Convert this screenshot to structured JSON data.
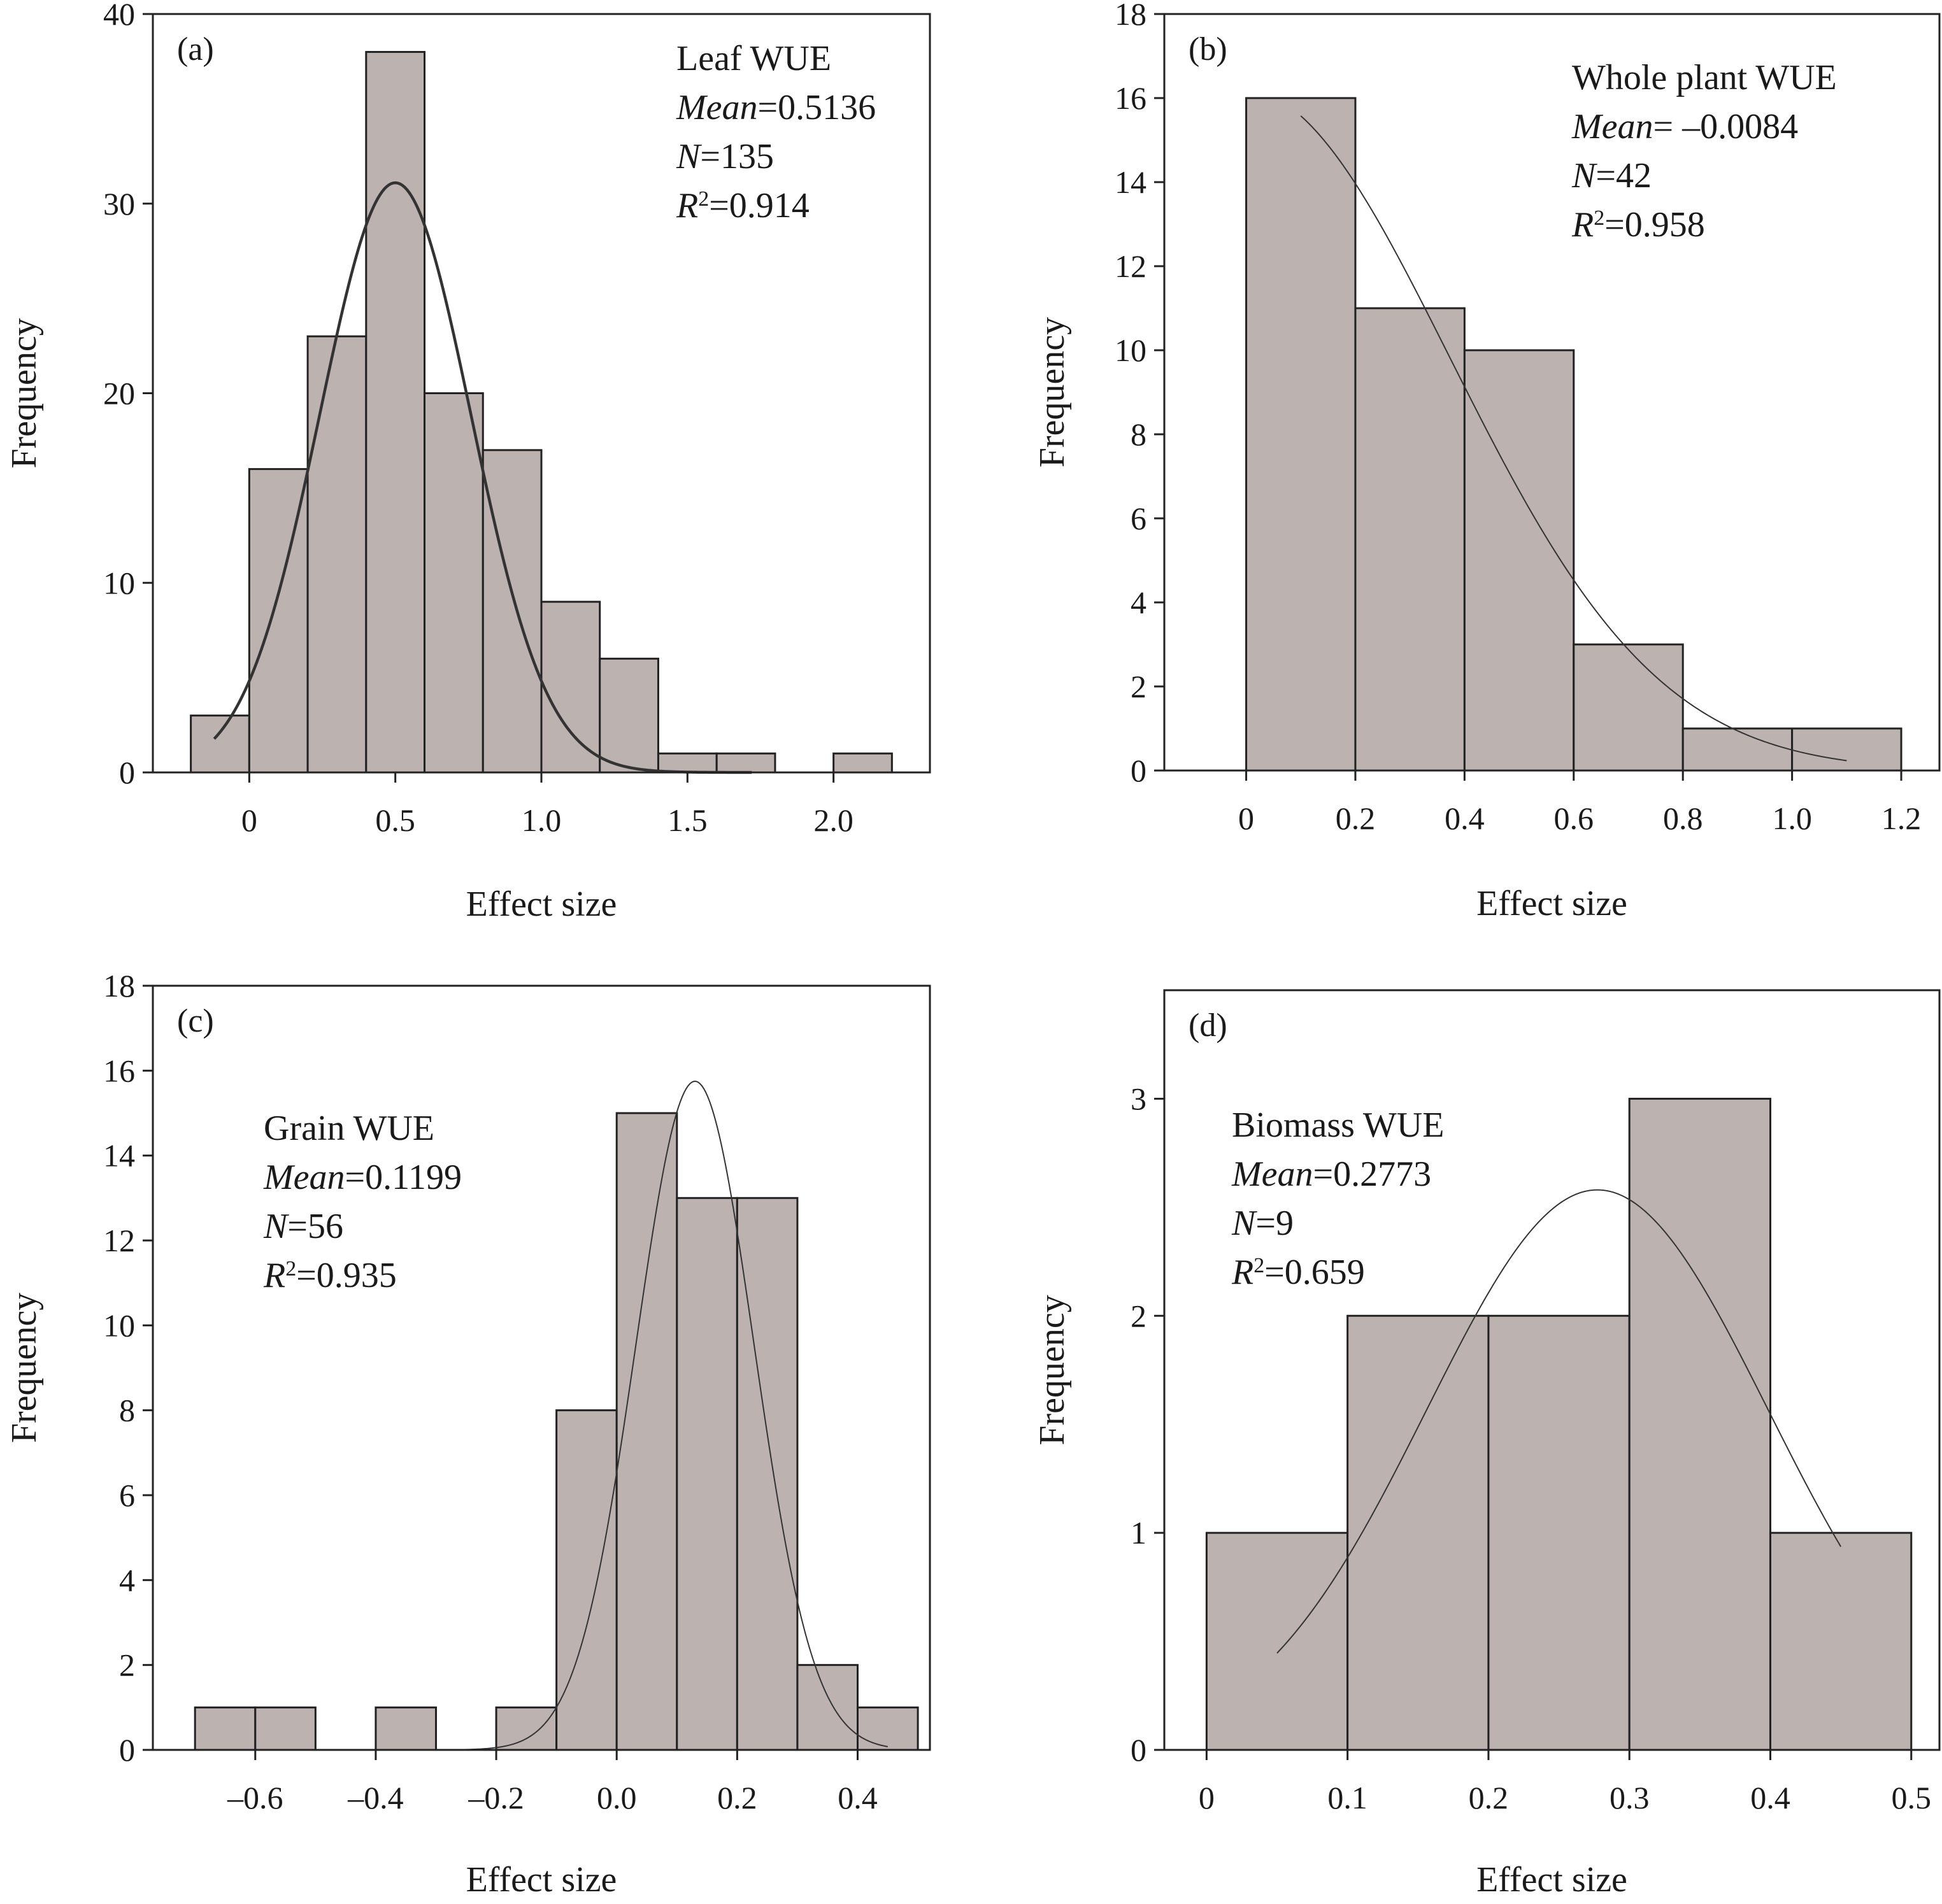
{
  "chart_data": [
    {
      "type": "bar",
      "panel_label": "(a)",
      "title": "",
      "xlabel": "Effect size",
      "ylabel": "Frequency",
      "xlim": [
        -0.33,
        2.33
      ],
      "ylim": [
        0,
        40
      ],
      "xticks": [
        0,
        0.5,
        1.0,
        1.5,
        2.0
      ],
      "xtick_labels": [
        "0",
        "0.5",
        "1.0",
        "1.5",
        "2.0"
      ],
      "yticks": [
        0,
        10,
        20,
        30,
        40
      ],
      "ytick_labels": [
        "0",
        "10",
        "20",
        "30",
        "40"
      ],
      "bins": [
        {
          "x0": -0.2,
          "x1": 0.0,
          "value": 3
        },
        {
          "x0": 0.0,
          "x1": 0.2,
          "value": 16
        },
        {
          "x0": 0.2,
          "x1": 0.4,
          "value": 23
        },
        {
          "x0": 0.4,
          "x1": 0.6,
          "value": 38
        },
        {
          "x0": 0.6,
          "x1": 0.8,
          "value": 20
        },
        {
          "x0": 0.8,
          "x1": 1.0,
          "value": 17
        },
        {
          "x0": 1.0,
          "x1": 1.2,
          "value": 9
        },
        {
          "x0": 1.2,
          "x1": 1.4,
          "value": 6
        },
        {
          "x0": 1.4,
          "x1": 1.6,
          "value": 1
        },
        {
          "x0": 1.6,
          "x1": 1.8,
          "value": 1
        },
        {
          "x0": 2.0,
          "x1": 2.2,
          "value": 1
        }
      ],
      "fit_curve": {
        "mean": 0.5,
        "sd": 0.259,
        "peak": 31.1,
        "x_range": [
          -0.12,
          1.72
        ]
      },
      "annotation_position": "top-right",
      "annotation": {
        "name": "Leaf WUE",
        "mean_label": "Mean",
        "mean_value": "=0.5136",
        "n_label": "N",
        "n_value": "=135",
        "r_label": "R",
        "r_sup": "2",
        "r_value": "=0.914"
      },
      "grid": false
    },
    {
      "type": "bar",
      "panel_label": "(b)",
      "title": "",
      "xlabel": "Effect size",
      "ylabel": "Frequency",
      "xlim": [
        -0.15,
        1.27
      ],
      "ylim": [
        0,
        18
      ],
      "xticks": [
        0,
        0.2,
        0.4,
        0.6,
        0.8,
        1.0,
        1.2
      ],
      "xtick_labels": [
        "0",
        "0.2",
        "0.4",
        "0.6",
        "0.8",
        "1.0",
        "1.2"
      ],
      "yticks": [
        0,
        2,
        4,
        6,
        8,
        10,
        12,
        14,
        16,
        18
      ],
      "ytick_labels": [
        "0",
        "2",
        "4",
        "6",
        "8",
        "10",
        "12",
        "14",
        "16",
        "18"
      ],
      "bins": [
        {
          "x0": 0.0,
          "x1": 0.2,
          "value": 16
        },
        {
          "x0": 0.2,
          "x1": 0.4,
          "value": 11
        },
        {
          "x0": 0.4,
          "x1": 0.6,
          "value": 10
        },
        {
          "x0": 0.6,
          "x1": 0.8,
          "value": 3
        },
        {
          "x0": 0.8,
          "x1": 1.0,
          "value": 1
        },
        {
          "x0": 1.0,
          "x1": 1.2,
          "value": 1
        }
      ],
      "fit_curve": {
        "mean": -0.0084,
        "sd": 0.381,
        "peak": 16.22,
        "x_range": [
          0.1,
          1.1
        ]
      },
      "annotation_position": "top-right",
      "annotation": {
        "name": "Whole plant WUE",
        "mean_label": "Mean",
        "mean_value": "= –0.0084",
        "n_label": "N",
        "n_value": "=42",
        "r_label": "R",
        "r_sup": "2",
        "r_value": "=0.958"
      },
      "grid": false
    },
    {
      "type": "bar",
      "panel_label": "(c)",
      "title": "",
      "xlabel": "Effect size",
      "ylabel": "Frequency",
      "xlim": [
        -0.77,
        0.52
      ],
      "ylim": [
        0,
        18
      ],
      "xticks": [
        -0.6,
        -0.4,
        -0.2,
        0.0,
        0.2,
        0.4
      ],
      "xtick_labels": [
        "–0.6",
        "–0.4",
        "–0.2",
        "0.0",
        "0.2",
        "0.4"
      ],
      "yticks": [
        0,
        2,
        4,
        6,
        8,
        10,
        12,
        14,
        16,
        18
      ],
      "ytick_labels": [
        "0",
        "2",
        "4",
        "6",
        "8",
        "10",
        "12",
        "14",
        "16",
        "18"
      ],
      "bins": [
        {
          "x0": -0.7,
          "x1": -0.6,
          "value": 1
        },
        {
          "x0": -0.6,
          "x1": -0.5,
          "value": 1
        },
        {
          "x0": -0.4,
          "x1": -0.3,
          "value": 1
        },
        {
          "x0": -0.2,
          "x1": -0.1,
          "value": 1
        },
        {
          "x0": -0.1,
          "x1": 0.0,
          "value": 8
        },
        {
          "x0": 0.0,
          "x1": 0.1,
          "value": 15
        },
        {
          "x0": 0.1,
          "x1": 0.2,
          "value": 13
        },
        {
          "x0": 0.2,
          "x1": 0.3,
          "value": 13
        },
        {
          "x0": 0.3,
          "x1": 0.4,
          "value": 2
        },
        {
          "x0": 0.4,
          "x1": 0.5,
          "value": 1
        }
      ],
      "fit_curve": {
        "mean": 0.13,
        "sd": 0.098,
        "peak": 15.75,
        "x_range": [
          -0.33,
          0.45
        ]
      },
      "annotation_position": "top-left",
      "annotation": {
        "name": "Grain WUE",
        "mean_label": "Mean",
        "mean_value": "=0.1199",
        "n_label": "N",
        "n_value": "=56",
        "r_label": "R",
        "r_sup": "2",
        "r_value": "=0.935"
      },
      "grid": false
    },
    {
      "type": "bar",
      "panel_label": "(d)",
      "title": "",
      "xlabel": "Effect size",
      "ylabel": "Frequency",
      "xlim": [
        -0.03,
        0.52
      ],
      "ylim": [
        0,
        3.5
      ],
      "xticks": [
        0,
        0.1,
        0.2,
        0.3,
        0.4,
        0.5
      ],
      "xtick_labels": [
        "0",
        "0.1",
        "0.2",
        "0.3",
        "0.4",
        "0.5"
      ],
      "yticks": [
        0,
        1,
        2,
        3
      ],
      "ytick_labels": [
        "0",
        "1",
        "2",
        "3"
      ],
      "bins": [
        {
          "x0": 0.0,
          "x1": 0.1,
          "value": 1
        },
        {
          "x0": 0.1,
          "x1": 0.2,
          "value": 2
        },
        {
          "x0": 0.2,
          "x1": 0.3,
          "value": 2
        },
        {
          "x0": 0.3,
          "x1": 0.4,
          "value": 3
        },
        {
          "x0": 0.4,
          "x1": 0.5,
          "value": 1
        }
      ],
      "fit_curve": {
        "mean": 0.2773,
        "sd": 0.1213,
        "peak": 2.58,
        "x_range": [
          0.05,
          0.45
        ]
      },
      "annotation_position": "top-left",
      "annotation": {
        "name": "Biomass WUE",
        "mean_label": "Mean",
        "mean_value": "=0.2773",
        "n_label": "N",
        "n_value": "=9",
        "r_label": "R",
        "r_sup": "2",
        "r_value": "=0.659"
      },
      "grid": false
    }
  ],
  "colors": {
    "bar_fill": "#bcb2b0",
    "bar_edge": "#222222",
    "axis": "#222222",
    "curve": "#333333",
    "text": "#1a1a1a"
  }
}
